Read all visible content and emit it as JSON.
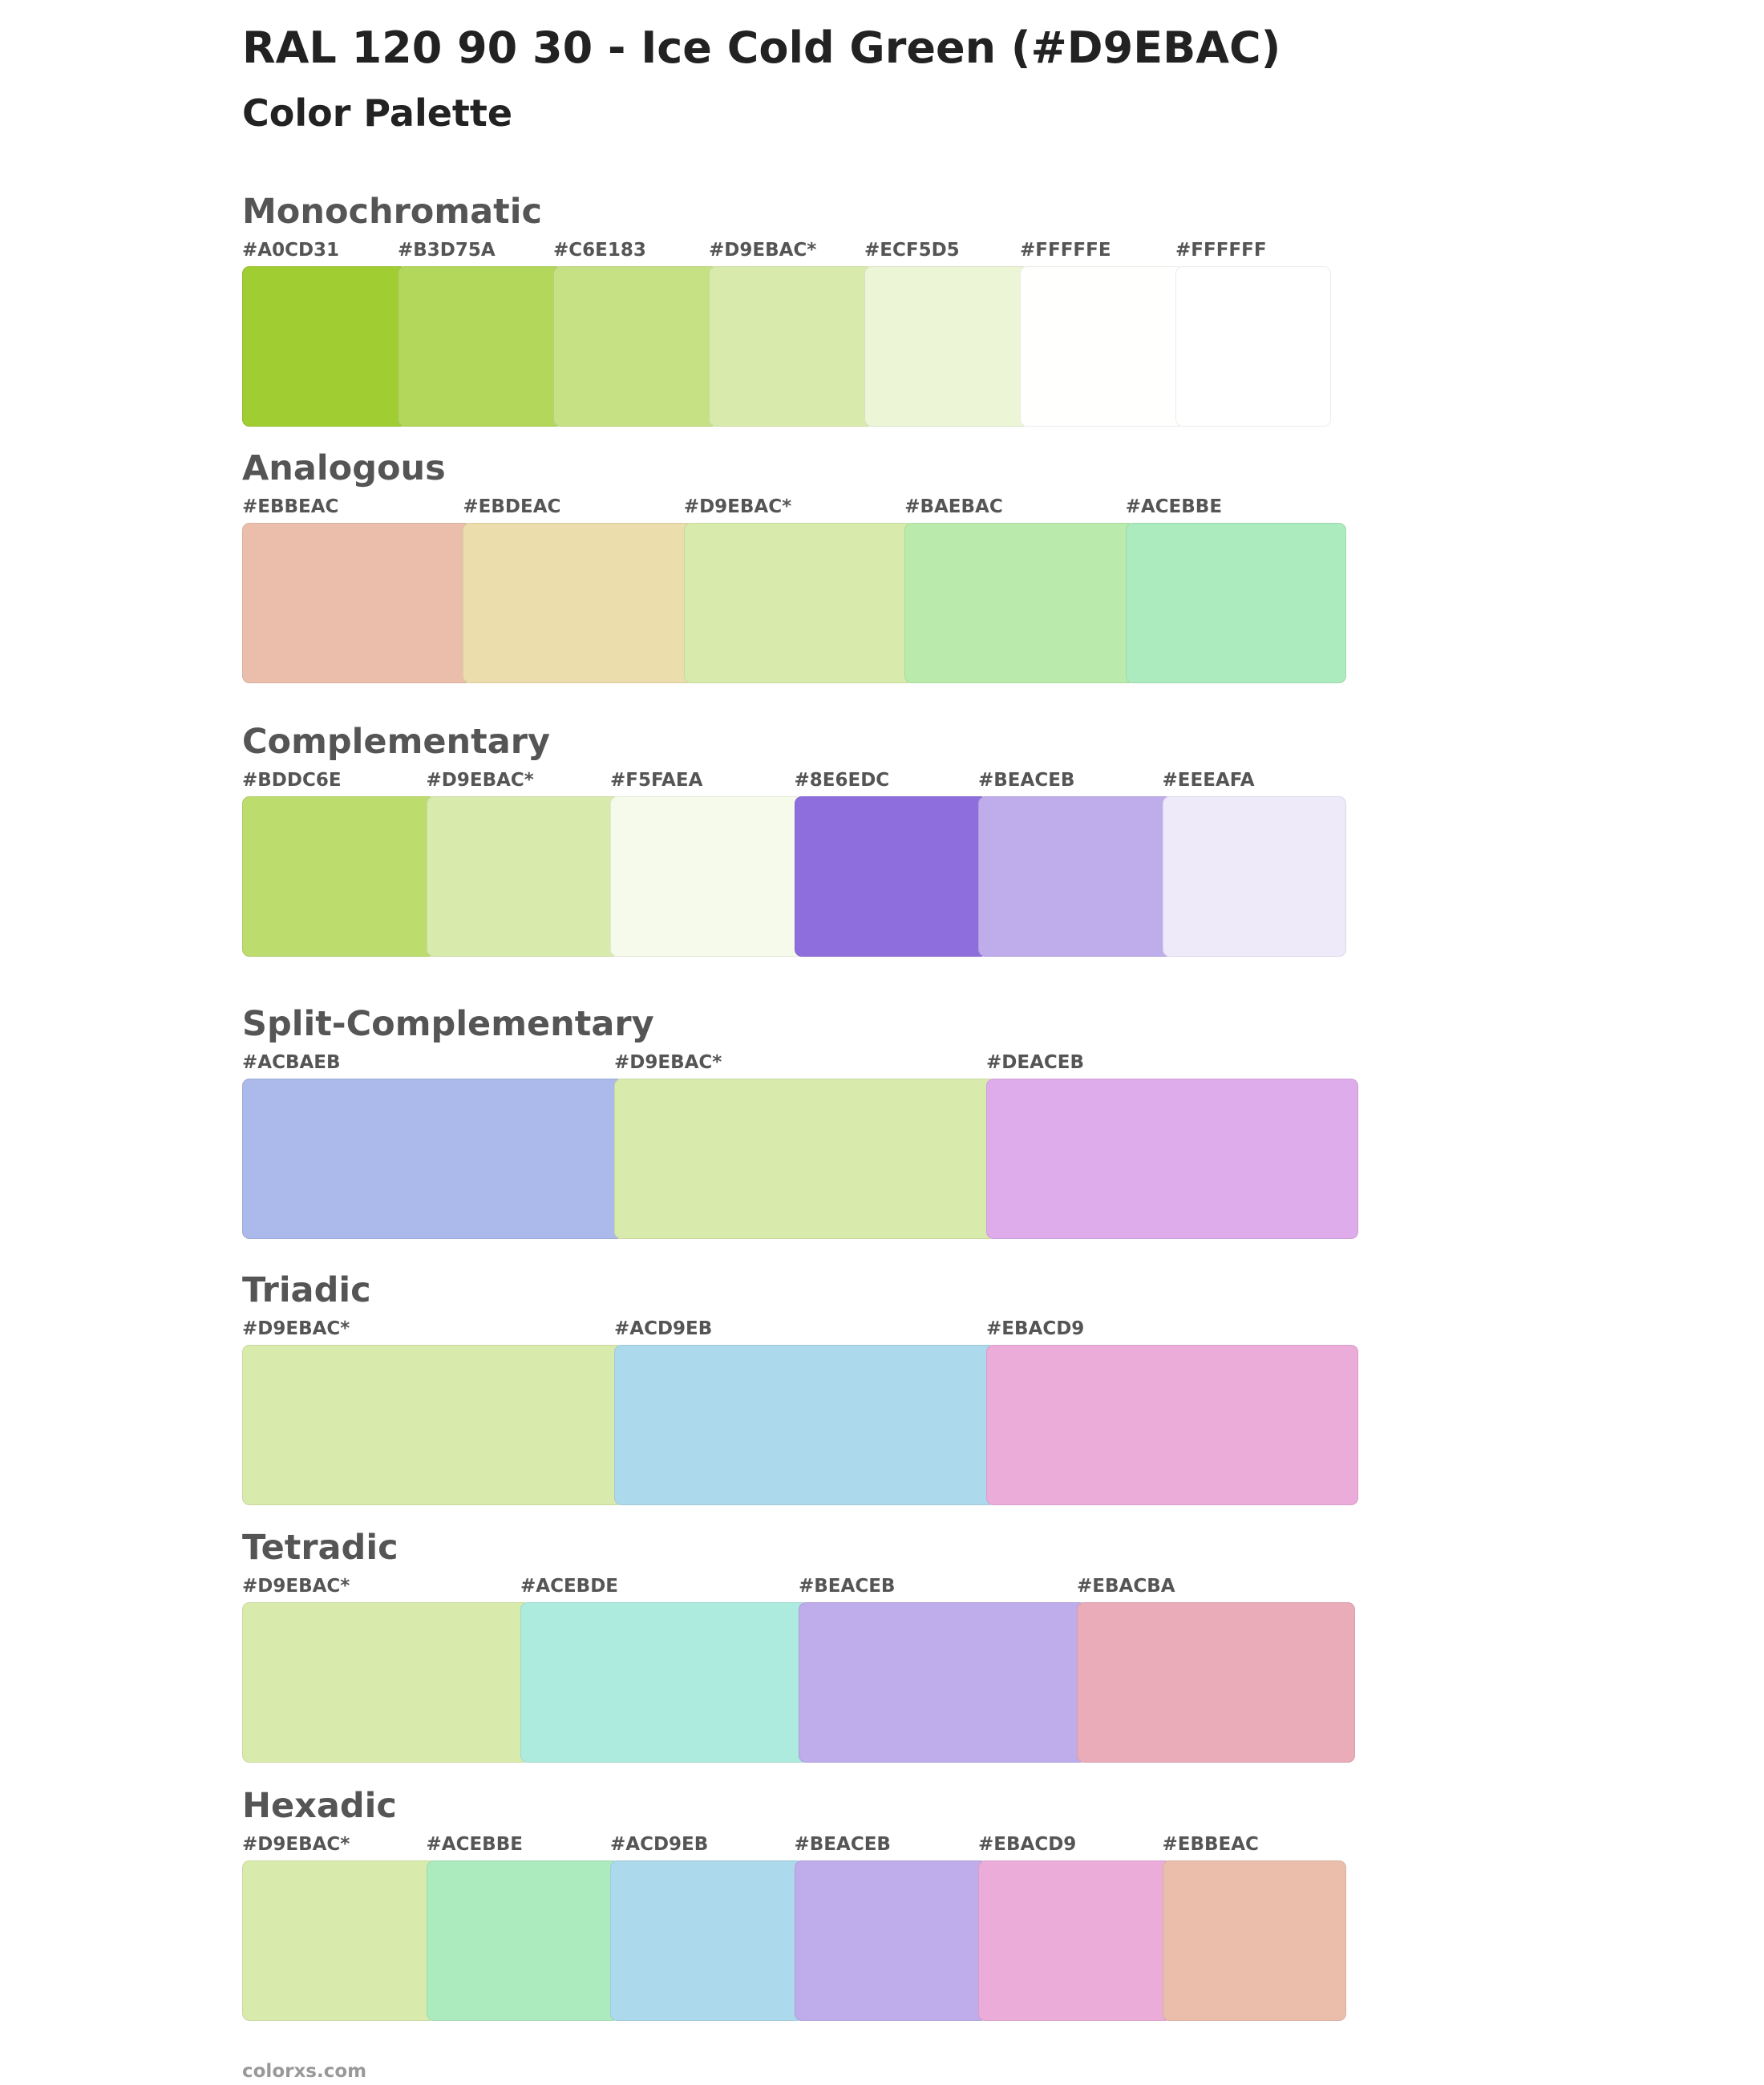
{
  "header": {
    "title": "RAL 120 90 30 - Ice Cold Green (#D9EBAC)",
    "subtitle": "Color Palette"
  },
  "sections": [
    {
      "title": "Monochromatic",
      "swatches": [
        {
          "label": "#A0CD31",
          "color": "#A0CD31"
        },
        {
          "label": "#B3D75A",
          "color": "#B3D75A"
        },
        {
          "label": "#C6E183",
          "color": "#C6E183"
        },
        {
          "label": "#D9EBAC*",
          "color": "#D9EBAC"
        },
        {
          "label": "#ECF5D5",
          "color": "#ECF5D5"
        },
        {
          "label": "#FFFFFE",
          "color": "#FFFFFE"
        },
        {
          "label": "#FFFFFF",
          "color": "#FFFFFF"
        }
      ]
    },
    {
      "title": "Analogous",
      "swatches": [
        {
          "label": "#EBBEAC",
          "color": "#EBBEAC"
        },
        {
          "label": "#EBDEAC",
          "color": "#EBDEAC"
        },
        {
          "label": "#D9EBAC*",
          "color": "#D9EBAC"
        },
        {
          "label": "#BAEBAC",
          "color": "#BAEBAC"
        },
        {
          "label": "#ACEBBE",
          "color": "#ACEBBE"
        }
      ]
    },
    {
      "title": "Complementary",
      "swatches": [
        {
          "label": "#BDDC6E",
          "color": "#BDDC6E"
        },
        {
          "label": "#D9EBAC*",
          "color": "#D9EBAC"
        },
        {
          "label": "#F5FAEA",
          "color": "#F5FAEA"
        },
        {
          "label": "#8E6EDC",
          "color": "#8E6EDC"
        },
        {
          "label": "#BEACEB",
          "color": "#BEACEB"
        },
        {
          "label": "#EEEAFA",
          "color": "#EEEAFA"
        }
      ]
    },
    {
      "title": "Split-Complementary",
      "swatches": [
        {
          "label": "#ACBAEB",
          "color": "#ACBAEB"
        },
        {
          "label": "#D9EBAC*",
          "color": "#D9EBAC"
        },
        {
          "label": "#DEACEB",
          "color": "#DEACEB"
        }
      ]
    },
    {
      "title": "Triadic",
      "swatches": [
        {
          "label": "#D9EBAC*",
          "color": "#D9EBAC"
        },
        {
          "label": "#ACD9EB",
          "color": "#ACD9EB"
        },
        {
          "label": "#EBACD9",
          "color": "#EBACD9"
        }
      ]
    },
    {
      "title": "Tetradic",
      "swatches": [
        {
          "label": "#D9EBAC*",
          "color": "#D9EBAC"
        },
        {
          "label": "#ACEBDE",
          "color": "#ACEBDE"
        },
        {
          "label": "#BEACEB",
          "color": "#BEACEB"
        },
        {
          "label": "#EBACBA",
          "color": "#EBACBA"
        }
      ]
    },
    {
      "title": "Hexadic",
      "swatches": [
        {
          "label": "#D9EBAC*",
          "color": "#D9EBAC"
        },
        {
          "label": "#ACEBBE",
          "color": "#ACEBBE"
        },
        {
          "label": "#ACD9EB",
          "color": "#ACD9EB"
        },
        {
          "label": "#BEACEB",
          "color": "#BEACEB"
        },
        {
          "label": "#EBACD9",
          "color": "#EBACD9"
        },
        {
          "label": "#EBBEAC",
          "color": "#EBBEAC"
        }
      ]
    }
  ],
  "footer": "colorxs.com"
}
